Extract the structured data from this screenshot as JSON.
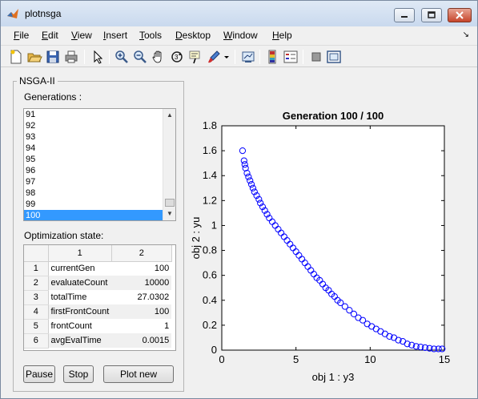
{
  "window": {
    "title": "plotnsga"
  },
  "menu": [
    "File",
    "Edit",
    "View",
    "Insert",
    "Tools",
    "Desktop",
    "Window",
    "Help"
  ],
  "toolbar_icons": [
    "new-figure-icon",
    "open-file-icon",
    "save-icon",
    "print-icon",
    "pointer-icon",
    "zoom-in-icon",
    "zoom-out-icon",
    "pan-icon",
    "rotate-icon",
    "data-cursor-icon",
    "brush-icon",
    "link-plot-icon",
    "colorbar-icon",
    "legend-icon",
    "hide-plot-tools-icon",
    "show-plot-tools-icon"
  ],
  "panel": {
    "title": "NSGA-II",
    "generations_label": "Generations :",
    "generations": [
      "91",
      "92",
      "93",
      "94",
      "95",
      "96",
      "97",
      "98",
      "99",
      "100"
    ],
    "selected_generation": "100",
    "state_label": "Optimization state:",
    "table": {
      "columns": [
        "1",
        "2"
      ],
      "rows": [
        {
          "index": "1",
          "name": "currentGen",
          "value": "100"
        },
        {
          "index": "2",
          "name": "evaluateCount",
          "value": "10000"
        },
        {
          "index": "3",
          "name": "totalTime",
          "value": "27.0302"
        },
        {
          "index": "4",
          "name": "firstFrontCount",
          "value": "100"
        },
        {
          "index": "5",
          "name": "frontCount",
          "value": "1"
        },
        {
          "index": "6",
          "name": "avgEvalTime",
          "value": "0.0015"
        }
      ]
    },
    "buttons": {
      "pause": "Pause",
      "stop": "Stop",
      "plot_new": "Plot new"
    }
  },
  "chart_data": {
    "type": "scatter",
    "title": "Generation 100 / 100",
    "xlabel": "obj 1 : y3",
    "ylabel": "obj 2 : yu",
    "xlim": [
      0,
      15
    ],
    "ylim": [
      0,
      1.8
    ],
    "xticks": [
      "0",
      "5",
      "10",
      "15"
    ],
    "yticks": [
      "0",
      "0.2",
      "0.4",
      "0.6",
      "0.8",
      "1",
      "1.2",
      "1.4",
      "1.6",
      "1.8"
    ],
    "marker": "circle",
    "color": "#0000ff",
    "x": [
      1.4,
      1.5,
      1.55,
      1.6,
      1.7,
      1.8,
      1.9,
      2.0,
      2.1,
      2.2,
      2.35,
      2.5,
      2.6,
      2.75,
      2.9,
      3.05,
      3.2,
      3.4,
      3.6,
      3.8,
      4.0,
      4.2,
      4.4,
      4.6,
      4.8,
      5.0,
      5.2,
      5.4,
      5.6,
      5.8,
      6.0,
      6.2,
      6.4,
      6.6,
      6.8,
      7.0,
      7.2,
      7.4,
      7.6,
      7.8,
      8.0,
      8.3,
      8.6,
      8.9,
      9.2,
      9.5,
      9.8,
      10.1,
      10.4,
      10.7,
      11.0,
      11.3,
      11.6,
      11.9,
      12.2,
      12.5,
      12.8,
      13.1,
      13.4,
      13.7,
      14.0,
      14.3,
      14.6,
      14.85
    ],
    "y": [
      1.6,
      1.52,
      1.49,
      1.46,
      1.42,
      1.39,
      1.36,
      1.33,
      1.3,
      1.27,
      1.24,
      1.21,
      1.18,
      1.15,
      1.12,
      1.09,
      1.06,
      1.03,
      1.0,
      0.97,
      0.94,
      0.91,
      0.88,
      0.85,
      0.82,
      0.79,
      0.76,
      0.73,
      0.7,
      0.67,
      0.64,
      0.61,
      0.58,
      0.56,
      0.53,
      0.5,
      0.48,
      0.45,
      0.43,
      0.4,
      0.38,
      0.35,
      0.32,
      0.29,
      0.26,
      0.24,
      0.21,
      0.19,
      0.17,
      0.15,
      0.13,
      0.11,
      0.1,
      0.08,
      0.07,
      0.05,
      0.04,
      0.03,
      0.025,
      0.02,
      0.015,
      0.01,
      0.01,
      0.01
    ]
  }
}
